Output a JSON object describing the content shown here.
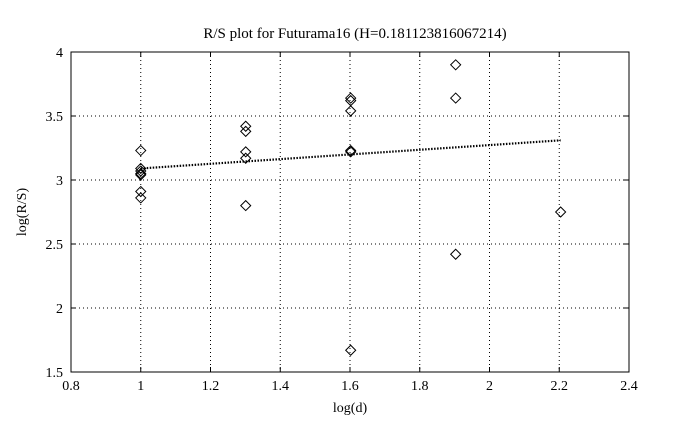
{
  "chart_data": {
    "type": "scatter",
    "title": "R/S plot for Futurama16 (H=0.181123816067214)",
    "xlabel": "log(d)",
    "ylabel": "log(R/S)",
    "xlim": [
      0.8,
      2.4
    ],
    "ylim": [
      1.5,
      4
    ],
    "xticks": [
      "0.8",
      "1",
      "1.2",
      "1.4",
      "1.6",
      "1.8",
      "2",
      "2.2",
      "2.4"
    ],
    "yticks": [
      "1.5",
      "2",
      "2.5",
      "3",
      "3.5",
      "4"
    ],
    "grid": true,
    "marker": "diamond",
    "points": [
      {
        "x": 1.0,
        "y": 3.23
      },
      {
        "x": 1.0,
        "y": 3.09
      },
      {
        "x": 1.0,
        "y": 3.07
      },
      {
        "x": 1.0,
        "y": 3.05
      },
      {
        "x": 1.0,
        "y": 3.04
      },
      {
        "x": 1.0,
        "y": 2.91
      },
      {
        "x": 1.0,
        "y": 2.86
      },
      {
        "x": 1.301,
        "y": 3.42
      },
      {
        "x": 1.301,
        "y": 3.38
      },
      {
        "x": 1.301,
        "y": 3.22
      },
      {
        "x": 1.301,
        "y": 3.17
      },
      {
        "x": 1.301,
        "y": 2.8
      },
      {
        "x": 1.602,
        "y": 3.64
      },
      {
        "x": 1.602,
        "y": 3.62
      },
      {
        "x": 1.602,
        "y": 3.54
      },
      {
        "x": 1.602,
        "y": 3.23
      },
      {
        "x": 1.602,
        "y": 3.22
      },
      {
        "x": 1.602,
        "y": 1.67
      },
      {
        "x": 1.903,
        "y": 3.9
      },
      {
        "x": 1.903,
        "y": 3.64
      },
      {
        "x": 1.903,
        "y": 2.42
      },
      {
        "x": 2.204,
        "y": 2.75
      }
    ],
    "fit_line": {
      "style": "dotted",
      "x": [
        1.0,
        2.204
      ],
      "y": [
        3.09,
        3.31
      ]
    }
  }
}
